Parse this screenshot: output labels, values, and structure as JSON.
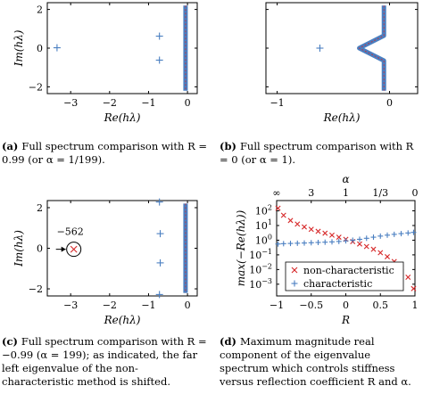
{
  "colors": {
    "red": "#d62728",
    "blue": "#4a7fc1",
    "black": "#000000"
  },
  "captions": [
    {
      "label": "(a)",
      "text": "Full spectrum comparison with R = 0.99 (or α = 1/199)."
    },
    {
      "label": "(b)",
      "text": "Full spectrum comparison with R = 0 (or α = 1)."
    },
    {
      "label": "(c)",
      "text": "Full spectrum comparison with R = −0.99 (α = 199); as indicated, the far left eigenvalue of the non-characteristic method is shifted."
    },
    {
      "label": "(d)",
      "text": "Maximum magnitude real component of the eigenvalue spectrum which controls stiffness versus reflection coefficient R and α."
    }
  ],
  "chart_data": [
    {
      "id": "a",
      "type": "scatter",
      "xlabel": "Re(hλ)",
      "ylabel": "Im(hλ)",
      "xlim": [
        -3.6,
        0.25
      ],
      "ylim": [
        -2.35,
        2.35
      ],
      "xticks": [
        "-3",
        "-2",
        "-1",
        "0"
      ],
      "yticks": [
        "-2",
        "0",
        "2"
      ],
      "series": [
        {
          "marker": "plus",
          "color": "blue",
          "points": [
            [
              -3.35,
              0.02
            ],
            [
              -0.72,
              0.62
            ],
            [
              -0.72,
              -0.62
            ]
          ]
        },
        {
          "marker": "band",
          "color": "blue",
          "shape": "straight",
          "x": -0.05,
          "ymin": -2.2,
          "ymax": 2.2
        }
      ]
    },
    {
      "id": "b",
      "type": "scatter",
      "xlabel": "Re(hλ)",
      "ylabel": "",
      "xlim": [
        -1.1,
        0.25
      ],
      "ylim": [
        -2.35,
        2.35
      ],
      "xticks": [
        "-1",
        "0"
      ],
      "yticks": [],
      "series": [
        {
          "marker": "plus",
          "color": "blue",
          "points": [
            [
              -0.62,
              0.0
            ]
          ]
        },
        {
          "marker": "band",
          "color": "blue",
          "shape": "notch",
          "x": -0.05,
          "notch_x": -0.27,
          "ymin": -2.2,
          "ymax": 2.2
        }
      ]
    },
    {
      "id": "c",
      "type": "scatter",
      "xlabel": "Re(hλ)",
      "ylabel": "Im(hλ)",
      "xlim": [
        -3.6,
        0.25
      ],
      "ylim": [
        -2.35,
        2.35
      ],
      "xticks": [
        "-3",
        "-2",
        "-1",
        "0"
      ],
      "yticks": [
        "-2",
        "0",
        "2"
      ],
      "annotation": {
        "text": "−562",
        "circle_at": [
          -2.92,
          -0.05
        ]
      },
      "series": [
        {
          "marker": "cross",
          "color": "red",
          "points": [
            [
              -2.92,
              -0.05
            ]
          ]
        },
        {
          "marker": "plus",
          "color": "blue",
          "points": [
            [
              -0.7,
              0.72
            ],
            [
              -0.7,
              -0.72
            ],
            [
              -0.72,
              2.28
            ],
            [
              -0.72,
              -2.28
            ]
          ]
        },
        {
          "marker": "band",
          "color": "blue",
          "shape": "straight",
          "x": -0.05,
          "ymin": -2.2,
          "ymax": 2.2
        }
      ]
    },
    {
      "id": "d",
      "type": "scatter",
      "xlabel": "R",
      "ylabel": "max(−Re(hλ))",
      "top_axis_label": "α",
      "top_ticks": [
        {
          "label": "∞",
          "R": -1
        },
        {
          "label": "3",
          "R": -0.5
        },
        {
          "label": "1",
          "R": 0
        },
        {
          "label": "1/3",
          "R": 0.5
        },
        {
          "label": "0",
          "R": 1
        }
      ],
      "xlim": [
        -1,
        1
      ],
      "ylim_log10": [
        -3.8,
        2.7
      ],
      "xticks": [
        "-1",
        "-0.5",
        "0",
        "0.5",
        "1"
      ],
      "yticks": [
        "10^-3",
        "10^-2",
        "10^-1",
        "10^0",
        "10^1",
        "10^2"
      ],
      "legend": {
        "position": "bottom-center",
        "entries": [
          "non-characteristic",
          "characteristic"
        ]
      },
      "series": [
        {
          "name": "non-characteristic",
          "marker": "cross",
          "color": "red",
          "R": [
            -0.98,
            -0.9,
            -0.8,
            -0.7,
            -0.6,
            -0.5,
            -0.4,
            -0.3,
            -0.2,
            -0.1,
            0.0,
            0.1,
            0.2,
            0.3,
            0.4,
            0.5,
            0.6,
            0.7,
            0.8,
            0.9,
            0.98
          ],
          "values": [
            150,
            50,
            22,
            12.5,
            8,
            5.5,
            4.0,
            3.0,
            2.2,
            1.6,
            1.15,
            0.8,
            0.55,
            0.37,
            0.24,
            0.14,
            0.075,
            0.035,
            0.013,
            0.003,
            0.0005
          ]
        },
        {
          "name": "characteristic",
          "marker": "plus",
          "color": "blue",
          "R": [
            -0.98,
            -0.9,
            -0.8,
            -0.7,
            -0.6,
            -0.5,
            -0.4,
            -0.3,
            -0.2,
            -0.1,
            0.0,
            0.1,
            0.2,
            0.3,
            0.4,
            0.5,
            0.6,
            0.7,
            0.8,
            0.9,
            0.98
          ],
          "values": [
            0.55,
            0.58,
            0.6,
            0.62,
            0.64,
            0.67,
            0.7,
            0.73,
            0.77,
            0.82,
            0.9,
            1.0,
            1.15,
            1.35,
            1.6,
            1.9,
            2.2,
            2.5,
            2.8,
            3.1,
            3.4
          ]
        }
      ]
    }
  ]
}
